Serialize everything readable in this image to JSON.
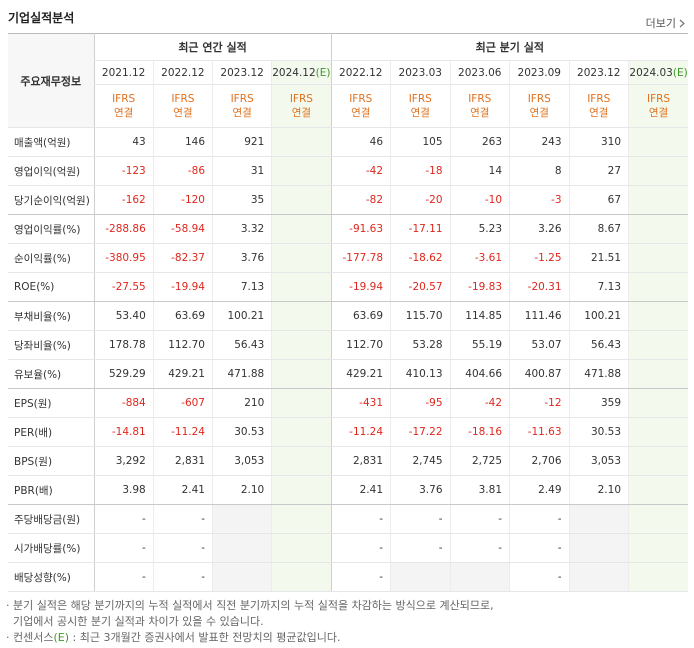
{
  "header": {
    "title": "기업실적분석",
    "more": "더보기"
  },
  "table": {
    "label_header": "주요재무정보",
    "groups": [
      {
        "label": "최근 연간 실적",
        "span": 4
      },
      {
        "label": "최근 분기 실적",
        "span": 6
      }
    ],
    "columns": [
      {
        "date": "2021.12",
        "basis": "IFRS",
        "scope": "연결"
      },
      {
        "date": "2022.12",
        "basis": "IFRS",
        "scope": "연결"
      },
      {
        "date": "2023.12",
        "basis": "IFRS",
        "scope": "연결"
      },
      {
        "date": "2024.12",
        "estimate": "(E)",
        "basis": "IFRS",
        "scope": "연결"
      },
      {
        "date": "2022.12",
        "basis": "IFRS",
        "scope": "연결"
      },
      {
        "date": "2023.03",
        "basis": "IFRS",
        "scope": "연결"
      },
      {
        "date": "2023.06",
        "basis": "IFRS",
        "scope": "연결"
      },
      {
        "date": "2023.09",
        "basis": "IFRS",
        "scope": "연결"
      },
      {
        "date": "2023.12",
        "basis": "IFRS",
        "scope": "연결"
      },
      {
        "date": "2024.03",
        "estimate": "(E)",
        "basis": "IFRS",
        "scope": "연결"
      }
    ],
    "rows": [
      {
        "label": "매출액(억원)",
        "values": [
          "43",
          "146",
          "921",
          null,
          "46",
          "105",
          "263",
          "243",
          "310",
          null
        ]
      },
      {
        "label": "영업이익(억원)",
        "values": [
          "-123",
          "-86",
          "31",
          null,
          "-42",
          "-18",
          "14",
          "8",
          "27",
          null
        ]
      },
      {
        "label": "당기순이익(억원)",
        "values": [
          "-162",
          "-120",
          "35",
          null,
          "-82",
          "-20",
          "-10",
          "-3",
          "67",
          null
        ]
      },
      {
        "label": "영업이익률(%)",
        "values": [
          "-288.86",
          "-58.94",
          "3.32",
          null,
          "-91.63",
          "-17.11",
          "5.23",
          "3.26",
          "8.67",
          null
        ]
      },
      {
        "label": "순이익률(%)",
        "values": [
          "-380.95",
          "-82.37",
          "3.76",
          null,
          "-177.78",
          "-18.62",
          "-3.61",
          "-1.25",
          "21.51",
          null
        ]
      },
      {
        "label": "ROE(%)",
        "values": [
          "-27.55",
          "-19.94",
          "7.13",
          null,
          "-19.94",
          "-20.57",
          "-19.83",
          "-20.31",
          "7.13",
          null
        ]
      },
      {
        "label": "부채비율(%)",
        "values": [
          "53.40",
          "63.69",
          "100.21",
          null,
          "63.69",
          "115.70",
          "114.85",
          "111.46",
          "100.21",
          null
        ]
      },
      {
        "label": "당좌비율(%)",
        "values": [
          "178.78",
          "112.70",
          "56.43",
          null,
          "112.70",
          "53.28",
          "55.19",
          "53.07",
          "56.43",
          null
        ]
      },
      {
        "label": "유보율(%)",
        "values": [
          "529.29",
          "429.21",
          "471.88",
          null,
          "429.21",
          "410.13",
          "404.66",
          "400.87",
          "471.88",
          null
        ]
      },
      {
        "label": "EPS(원)",
        "values": [
          "-884",
          "-607",
          "210",
          null,
          "-431",
          "-95",
          "-42",
          "-12",
          "359",
          null
        ]
      },
      {
        "label": "PER(배)",
        "values": [
          "-14.81",
          "-11.24",
          "30.53",
          null,
          "-11.24",
          "-17.22",
          "-18.16",
          "-11.63",
          "30.53",
          null
        ]
      },
      {
        "label": "BPS(원)",
        "values": [
          "3,292",
          "2,831",
          "3,053",
          null,
          "2,831",
          "2,745",
          "2,725",
          "2,706",
          "3,053",
          null
        ]
      },
      {
        "label": "PBR(배)",
        "values": [
          "3.98",
          "2.41",
          "2.10",
          null,
          "2.41",
          "3.76",
          "3.81",
          "2.49",
          "2.10",
          null
        ]
      },
      {
        "label": "주당배당금(원)",
        "values": [
          "-",
          "-",
          null,
          null,
          "-",
          "-",
          "-",
          "-",
          null,
          null
        ]
      },
      {
        "label": "시가배당률(%)",
        "values": [
          "-",
          "-",
          null,
          null,
          "-",
          "-",
          "-",
          "-",
          null,
          null
        ]
      },
      {
        "label": "배당성향(%)",
        "values": [
          "-",
          "-",
          null,
          null,
          "-",
          null,
          null,
          "-",
          null,
          null
        ]
      }
    ]
  },
  "notes": [
    {
      "text": "분기 실적은 해당 분기까지의 누적 실적에서 직전 분기까지의 누적 실적을 차감하는 방식으로 계산되므로,"
    },
    {
      "text": "기업에서 공시한 분기 실적과 차이가 있을 수 있습니다."
    },
    {
      "prefix": "컨센서스",
      "estimate": "(E)",
      "text": " : 최근 3개월간 증권사에서 발표한 전망치의 평균값입니다."
    }
  ]
}
